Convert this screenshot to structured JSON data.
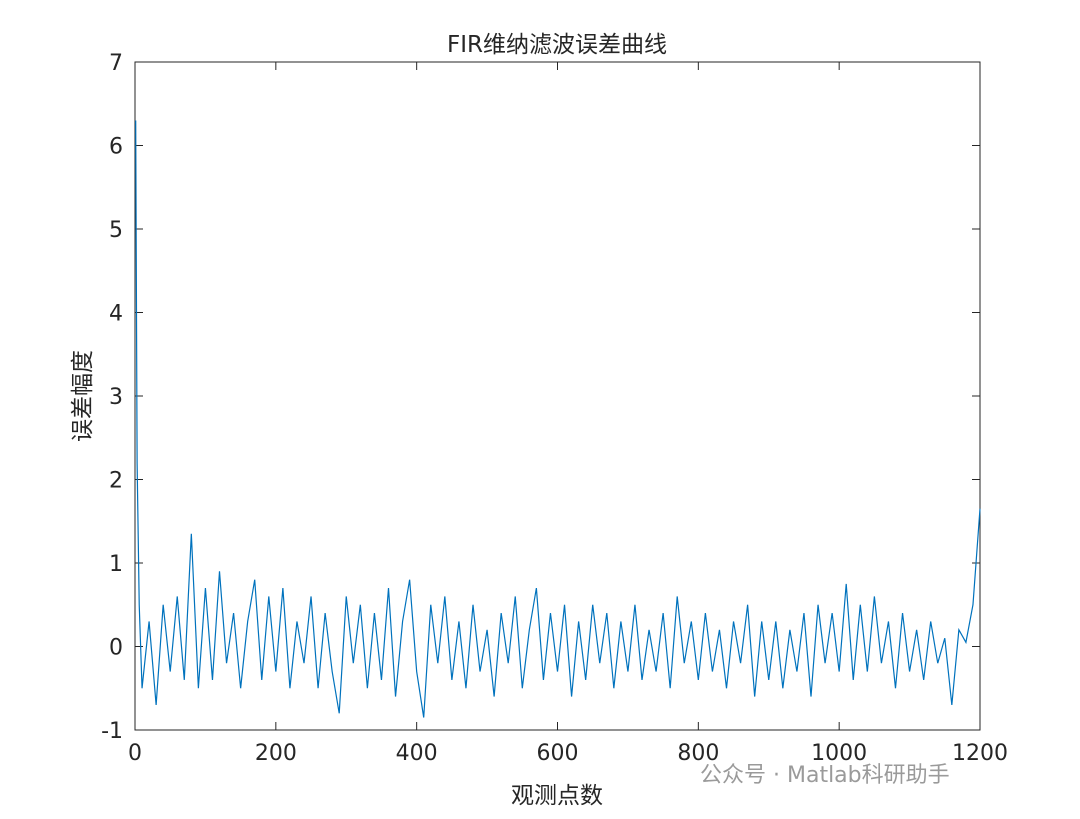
{
  "chart_data": {
    "type": "line",
    "title": "FIR维纳滤波误差曲线",
    "x_label": "观测点数",
    "y_label": "误差幅度",
    "watermark": "公众号 · Matlab科研助手",
    "xlim": [
      0,
      1200
    ],
    "xticks": [
      0,
      200,
      400,
      600,
      800,
      1000,
      1200
    ],
    "ylim": [
      -1,
      7
    ],
    "yticks": [
      -1,
      0,
      1,
      2,
      3,
      4,
      5,
      6,
      7
    ],
    "series": [
      {
        "color": "#0072bd",
        "x": [
          1,
          3,
          6,
          10,
          20,
          30,
          40,
          50,
          60,
          70,
          80,
          90,
          100,
          110,
          120,
          130,
          140,
          150,
          160,
          170,
          180,
          190,
          200,
          210,
          220,
          230,
          240,
          250,
          260,
          270,
          280,
          290,
          300,
          310,
          320,
          330,
          340,
          350,
          360,
          370,
          380,
          390,
          400,
          410,
          420,
          430,
          440,
          450,
          460,
          470,
          480,
          490,
          500,
          510,
          520,
          530,
          540,
          550,
          560,
          570,
          580,
          590,
          600,
          610,
          620,
          630,
          640,
          650,
          660,
          670,
          680,
          690,
          700,
          710,
          720,
          730,
          740,
          750,
          760,
          770,
          780,
          790,
          800,
          810,
          820,
          830,
          840,
          850,
          860,
          870,
          880,
          890,
          900,
          910,
          920,
          930,
          940,
          950,
          960,
          970,
          980,
          990,
          1000,
          1010,
          1020,
          1030,
          1040,
          1050,
          1060,
          1070,
          1080,
          1090,
          1100,
          1110,
          1120,
          1130,
          1140,
          1150,
          1160,
          1170,
          1180,
          1190,
          1200
        ],
        "values": [
          6.3,
          2.2,
          0.5,
          -0.5,
          0.3,
          -0.7,
          0.5,
          -0.3,
          0.6,
          -0.4,
          1.35,
          -0.5,
          0.7,
          -0.4,
          0.9,
          -0.2,
          0.4,
          -0.5,
          0.3,
          0.8,
          -0.4,
          0.6,
          -0.3,
          0.7,
          -0.5,
          0.3,
          -0.2,
          0.6,
          -0.5,
          0.4,
          -0.3,
          -0.8,
          0.6,
          -0.2,
          0.5,
          -0.5,
          0.4,
          -0.4,
          0.7,
          -0.6,
          0.3,
          0.8,
          -0.3,
          -0.85,
          0.5,
          -0.2,
          0.6,
          -0.4,
          0.3,
          -0.5,
          0.5,
          -0.3,
          0.2,
          -0.6,
          0.4,
          -0.2,
          0.6,
          -0.5,
          0.2,
          0.7,
          -0.4,
          0.4,
          -0.3,
          0.5,
          -0.6,
          0.3,
          -0.4,
          0.5,
          -0.2,
          0.4,
          -0.5,
          0.3,
          -0.3,
          0.5,
          -0.4,
          0.2,
          -0.3,
          0.4,
          -0.5,
          0.6,
          -0.2,
          0.3,
          -0.4,
          0.4,
          -0.3,
          0.2,
          -0.5,
          0.3,
          -0.2,
          0.5,
          -0.6,
          0.3,
          -0.4,
          0.3,
          -0.5,
          0.2,
          -0.3,
          0.4,
          -0.6,
          0.5,
          -0.2,
          0.4,
          -0.3,
          0.75,
          -0.4,
          0.5,
          -0.3,
          0.6,
          -0.2,
          0.3,
          -0.5,
          0.4,
          -0.3,
          0.2,
          -0.4,
          0.3,
          -0.2,
          0.1,
          -0.7,
          0.2,
          0.05,
          0.5,
          1.65
        ]
      }
    ]
  }
}
